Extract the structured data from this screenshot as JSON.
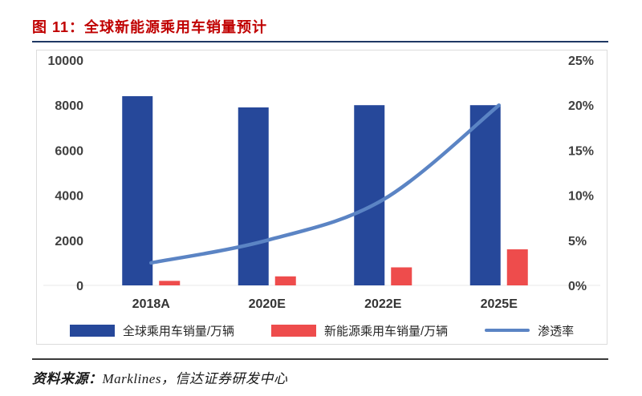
{
  "header": {
    "title": "图 11：全球新能源乘用车销量预计"
  },
  "footer": {
    "source_label": "资料来源：",
    "source_value": "Marklines，信达证券研发中心"
  },
  "colors": {
    "title_red": "#C00000",
    "underline_navy": "#1F3864",
    "footer_rule": "#3A3A3A",
    "bar_primary": "#26489A",
    "bar_secondary": "#EE4C4C",
    "line_series": "#5B84C4",
    "axis_text": "#3F3F3F",
    "chart_border": "#DCDCDC"
  },
  "chart_data": {
    "type": "bar",
    "subtype": "grouped-bars-with-line",
    "title": "全球新能源乘用车销量预计",
    "categories": [
      "2018A",
      "2020E",
      "2022E",
      "2025E"
    ],
    "series": [
      {
        "name": "全球乘用车销量/万辆",
        "type": "bar",
        "axis": "left",
        "color": "#26489A",
        "values": [
          8400,
          7900,
          8000,
          8000
        ]
      },
      {
        "name": "新能源乘用车销量/万辆",
        "type": "bar",
        "axis": "left",
        "color": "#EE4C4C",
        "values": [
          200,
          400,
          800,
          1600
        ]
      },
      {
        "name": "渗透率",
        "type": "line",
        "axis": "right",
        "color": "#5B84C4",
        "values": [
          2.5,
          5,
          9.5,
          20
        ]
      }
    ],
    "left_axis": {
      "min": 0,
      "max": 10000,
      "step": 2000,
      "tick_labels": [
        "0",
        "2000",
        "4000",
        "6000",
        "8000",
        "10000"
      ]
    },
    "right_axis": {
      "min": 0,
      "max": 25,
      "step": 5,
      "unit": "%",
      "tick_labels": [
        "0%",
        "5%",
        "10%",
        "15%",
        "20%",
        "25%"
      ]
    },
    "xlabel": "",
    "ylabel": "",
    "grid": false,
    "legend_position": "bottom"
  }
}
